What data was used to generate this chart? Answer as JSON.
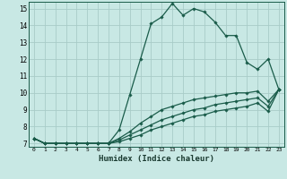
{
  "xlabel": "Humidex (Indice chaleur)",
  "ylabel": "",
  "bg_color": "#c8e8e4",
  "grid_color": "#a8ccc8",
  "line_color": "#1a5c4a",
  "xlim": [
    -0.5,
    23.5
  ],
  "ylim": [
    6.8,
    15.4
  ],
  "yticks": [
    7,
    8,
    9,
    10,
    11,
    12,
    13,
    14,
    15
  ],
  "xticks": [
    0,
    1,
    2,
    3,
    4,
    5,
    6,
    7,
    8,
    9,
    10,
    11,
    12,
    13,
    14,
    15,
    16,
    17,
    18,
    19,
    20,
    21,
    22,
    23
  ],
  "series": [
    {
      "x": [
        0,
        1,
        2,
        3,
        4,
        5,
        6,
        7,
        8,
        9,
        10,
        11,
        12,
        13,
        14,
        15,
        16,
        17,
        18,
        19,
        20,
        21,
        22,
        23
      ],
      "y": [
        7.3,
        7.0,
        7.0,
        7.0,
        7.0,
        7.0,
        7.0,
        7.0,
        7.8,
        9.9,
        12.0,
        14.1,
        14.5,
        15.3,
        14.6,
        15.0,
        14.8,
        14.2,
        13.4,
        13.4,
        11.8,
        11.4,
        12.0,
        10.2
      ],
      "marker": "D",
      "markersize": 1.8,
      "linewidth": 0.9
    },
    {
      "x": [
        0,
        1,
        2,
        3,
        4,
        5,
        6,
        7,
        8,
        9,
        10,
        11,
        12,
        13,
        14,
        15,
        16,
        17,
        18,
        19,
        20,
        21,
        22,
        23
      ],
      "y": [
        7.3,
        7.0,
        7.0,
        7.0,
        7.0,
        7.0,
        7.0,
        7.0,
        7.3,
        7.7,
        8.2,
        8.6,
        9.0,
        9.2,
        9.4,
        9.6,
        9.7,
        9.8,
        9.9,
        10.0,
        10.0,
        10.1,
        9.5,
        10.2
      ],
      "marker": "D",
      "markersize": 1.8,
      "linewidth": 0.9
    },
    {
      "x": [
        0,
        1,
        2,
        3,
        4,
        5,
        6,
        7,
        8,
        9,
        10,
        11,
        12,
        13,
        14,
        15,
        16,
        17,
        18,
        19,
        20,
        21,
        22,
        23
      ],
      "y": [
        7.3,
        7.0,
        7.0,
        7.0,
        7.0,
        7.0,
        7.0,
        7.0,
        7.2,
        7.5,
        7.8,
        8.1,
        8.4,
        8.6,
        8.8,
        9.0,
        9.1,
        9.3,
        9.4,
        9.5,
        9.6,
        9.7,
        9.2,
        10.2
      ],
      "marker": "D",
      "markersize": 1.8,
      "linewidth": 0.9
    },
    {
      "x": [
        0,
        1,
        2,
        3,
        4,
        5,
        6,
        7,
        8,
        9,
        10,
        11,
        12,
        13,
        14,
        15,
        16,
        17,
        18,
        19,
        20,
        21,
        22,
        23
      ],
      "y": [
        7.3,
        7.0,
        7.0,
        7.0,
        7.0,
        7.0,
        7.0,
        7.0,
        7.1,
        7.3,
        7.5,
        7.8,
        8.0,
        8.2,
        8.4,
        8.6,
        8.7,
        8.9,
        9.0,
        9.1,
        9.2,
        9.4,
        8.9,
        10.2
      ],
      "marker": "D",
      "markersize": 1.8,
      "linewidth": 0.9
    }
  ]
}
